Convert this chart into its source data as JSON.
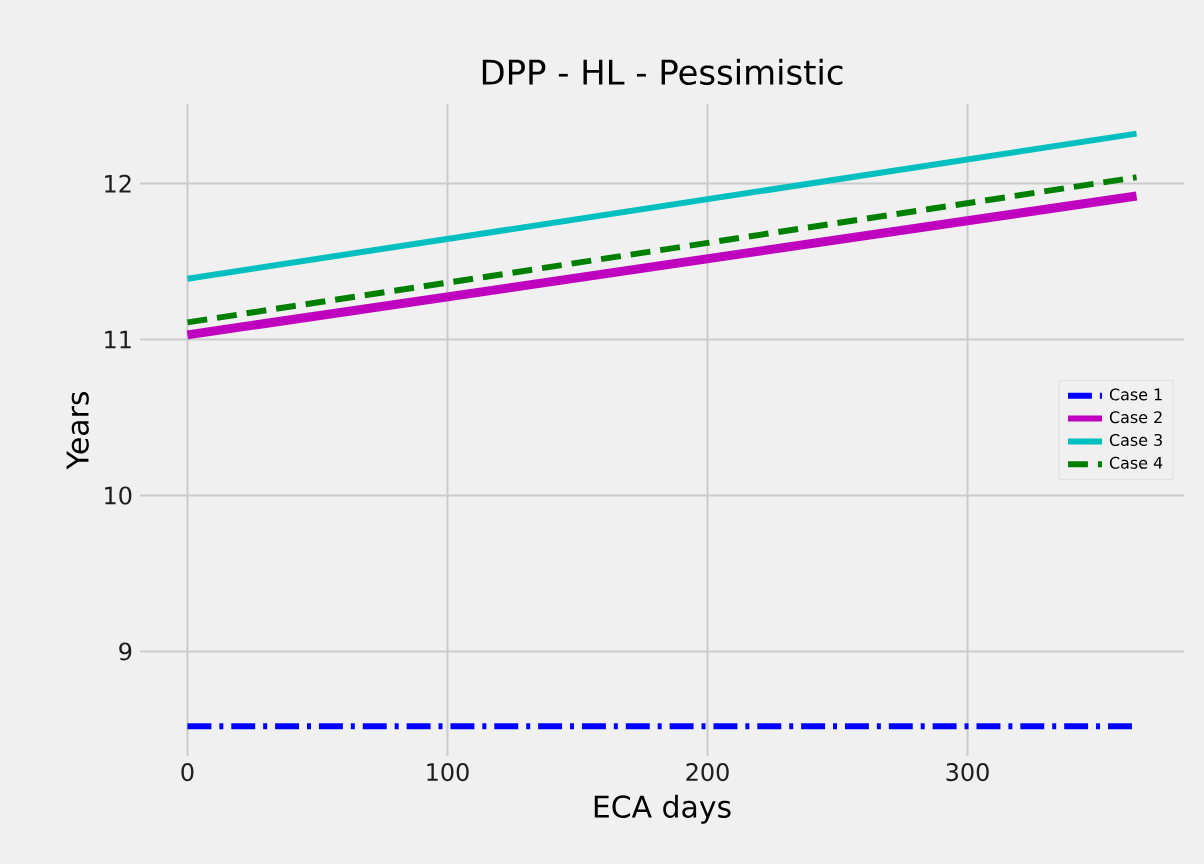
{
  "chart_data": {
    "type": "line",
    "title": "DPP - HL - Pessimistic",
    "xlabel": "ECA days",
    "ylabel": "Years",
    "x": [
      0,
      365
    ],
    "series": [
      {
        "name": "Case 1",
        "color": "#0000ff",
        "values": [
          8.52,
          8.52
        ],
        "line_style": "dashdot"
      },
      {
        "name": "Case 2",
        "color": "#bf00bf",
        "values": [
          11.03,
          11.92
        ],
        "line_style": "solid"
      },
      {
        "name": "Case 3",
        "color": "#00bfbf",
        "values": [
          11.39,
          12.32
        ],
        "line_style": "solid"
      },
      {
        "name": "Case 4",
        "color": "#008000",
        "values": [
          11.11,
          12.04
        ],
        "line_style": "dashed"
      }
    ],
    "xlim": [
      -18.25,
      383.25
    ],
    "ylim": [
      8.33,
      12.51
    ],
    "xticks": [
      0,
      100,
      200,
      300
    ],
    "yticks": [
      9,
      10,
      11,
      12
    ],
    "grid": true,
    "legend": "right",
    "marker": "none"
  }
}
